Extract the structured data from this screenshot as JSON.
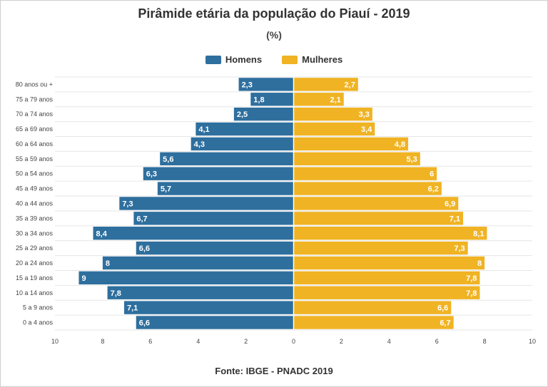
{
  "chart_data": {
    "type": "bar",
    "orientation": "horizontal",
    "title": "Pirâmide etária da população do Piauí - 2019",
    "subtitle": "(%)",
    "categories": [
      "80 anos ou +",
      "75 a 79 anos",
      "70 a 74 anos",
      "65 a 69 anos",
      "60 a 64 anos",
      "55 a 59 anos",
      "50 a 54 anos",
      "45 a 49 anos",
      "40 a 44 anos",
      "35 a 39 anos",
      "30 a 34 anos",
      "25 a 29 anos",
      "20 a 24 anos",
      "15 a 19 anos",
      "10 a 14 anos",
      "5 a 9 anos",
      "0 a 4 anos"
    ],
    "series": [
      {
        "name": "Homens",
        "color": "#2e6f9e",
        "values": [
          2.3,
          1.8,
          2.5,
          4.1,
          4.3,
          5.6,
          6.3,
          5.7,
          7.3,
          6.7,
          8.4,
          6.6,
          8,
          9,
          7.8,
          7.1,
          6.6
        ],
        "labels": [
          "2,3",
          "1,8",
          "2,5",
          "4,1",
          "4,3",
          "5,6",
          "6,3",
          "5,7",
          "7,3",
          "6,7",
          "8,4",
          "6,6",
          "8",
          "9",
          "7,8",
          "7,1",
          "6,6"
        ]
      },
      {
        "name": "Mulheres",
        "color": "#f0b323",
        "values": [
          2.7,
          2.1,
          3.3,
          3.4,
          4.8,
          5.3,
          6,
          6.2,
          6.9,
          7.1,
          8.1,
          7.3,
          8,
          7.8,
          7.8,
          6.6,
          6.7
        ],
        "labels": [
          "2,7",
          "2,1",
          "3,3",
          "3,4",
          "4,8",
          "5,3",
          "6",
          "6,2",
          "6,9",
          "7,1",
          "8,1",
          "7,3",
          "8",
          "7,8",
          "7,8",
          "6,6",
          "6,7"
        ]
      }
    ],
    "xlim": [
      -10,
      10
    ],
    "xticks": [
      "10",
      "8",
      "6",
      "4",
      "2",
      "0",
      "2",
      "4",
      "6",
      "8",
      "10"
    ],
    "grid": true,
    "legend_position": "top-center"
  },
  "source": "Fonte: IBGE - PNADC 2019"
}
